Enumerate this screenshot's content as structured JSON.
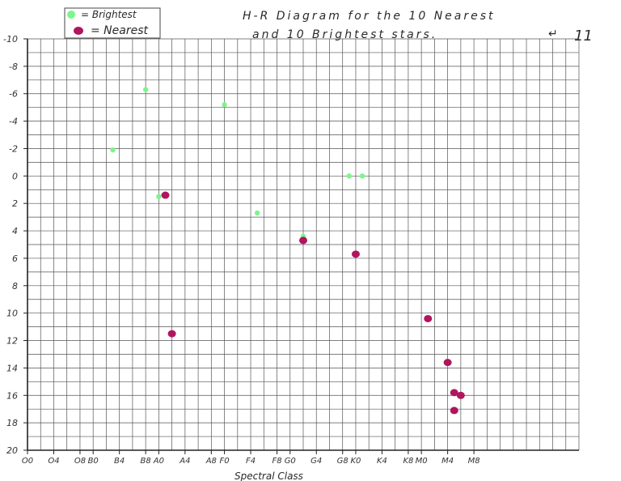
{
  "chart_data": {
    "type": "scatter",
    "title_line1": "H-R Diagram for the 10 Nearest",
    "title_line2": "and 10 Brightest stars.",
    "page_note": "11",
    "xlabel": "Spectral Class",
    "ylabel": "",
    "legend": {
      "placement": "top-left",
      "entries": [
        {
          "label": "= Brightest",
          "series": "brightest"
        },
        {
          "label": "= Nearest",
          "series": "nearest"
        }
      ]
    },
    "x_ticks": [
      "O0",
      "O4",
      "O8",
      "B0",
      "B4",
      "B8",
      "A0",
      "A4",
      "A8",
      "F0",
      "F4",
      "F8",
      "G0",
      "G4",
      "G8",
      "K0",
      "K4",
      "K8",
      "M0",
      "M4",
      "M8"
    ],
    "y_ticks": [
      -10,
      -8,
      -6,
      -4,
      -2,
      0,
      2,
      4,
      6,
      8,
      10,
      12,
      14,
      16,
      18,
      20
    ],
    "y_tick_labels": [
      "-10",
      "-8",
      "-6",
      "-4",
      "-2",
      "0",
      "2",
      "4",
      "6",
      "8",
      "10",
      "12",
      "14",
      "16",
      "18",
      "20"
    ],
    "xlim": [
      "O0",
      "M8"
    ],
    "ylim": [
      -10,
      20
    ],
    "y_inverted": true,
    "grid": true,
    "colors": {
      "brightest": "#7cf58c",
      "nearest": "#b0155e",
      "grid": "#555555"
    },
    "series": [
      {
        "name": "Brightest",
        "key": "brightest",
        "points": [
          {
            "spectral": "B3",
            "abs_mag": -1.9
          },
          {
            "spectral": "B8",
            "abs_mag": -6.3
          },
          {
            "spectral": "A0",
            "abs_mag": 1.5
          },
          {
            "spectral": "A1",
            "abs_mag": 1.4
          },
          {
            "spectral": "F0",
            "abs_mag": -5.2
          },
          {
            "spectral": "F5",
            "abs_mag": 2.7
          },
          {
            "spectral": "G2",
            "abs_mag": 4.4
          },
          {
            "spectral": "G9",
            "abs_mag": 0.0
          },
          {
            "spectral": "K1",
            "abs_mag": 0.0
          }
        ]
      },
      {
        "name": "Nearest",
        "key": "nearest",
        "points": [
          {
            "spectral": "A1",
            "abs_mag": 1.4
          },
          {
            "spectral": "A2",
            "abs_mag": 11.5
          },
          {
            "spectral": "G2",
            "abs_mag": 4.7
          },
          {
            "spectral": "K0",
            "abs_mag": 5.7
          },
          {
            "spectral": "M1",
            "abs_mag": 10.4
          },
          {
            "spectral": "M4",
            "abs_mag": 13.6
          },
          {
            "spectral": "M5",
            "abs_mag": 15.8
          },
          {
            "spectral": "M5",
            "abs_mag": 17.1
          },
          {
            "spectral": "M6",
            "abs_mag": 16.0
          }
        ]
      }
    ]
  }
}
